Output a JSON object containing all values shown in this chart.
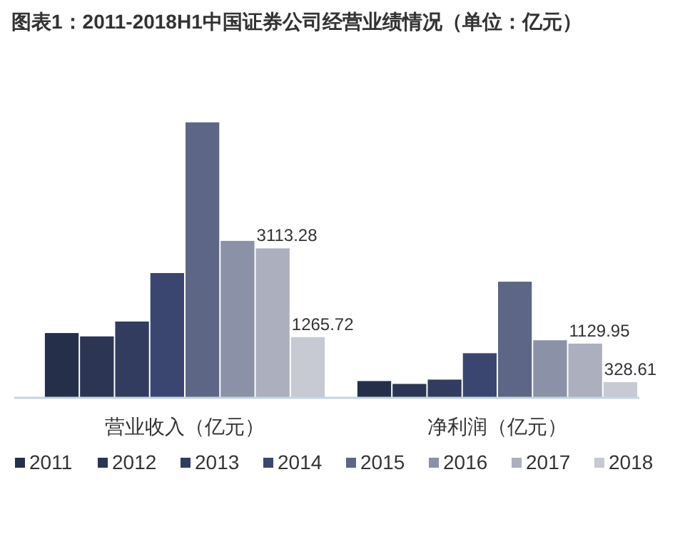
{
  "chart_data": {
    "type": "bar",
    "title": "图表1：2011-2018H1中国证券公司经营业绩情况（单位：亿元）",
    "categories": [
      "营业收入（亿元）",
      "净利润（亿元）"
    ],
    "legend": "bottom",
    "tick_labels": "x",
    "series": [
      {
        "name": "2011",
        "color": "#262f4a",
        "values": [
          1350,
          350
        ],
        "value_labels": [
          null,
          null
        ]
      },
      {
        "name": "2012",
        "color": "#2c3553",
        "values": [
          1280,
          290
        ],
        "value_labels": [
          null,
          null
        ]
      },
      {
        "name": "2013",
        "color": "#323c5f",
        "values": [
          1590,
          380
        ],
        "value_labels": [
          null,
          null
        ]
      },
      {
        "name": "2014",
        "color": "#3b4670",
        "values": [
          2600,
          930
        ],
        "value_labels": [
          null,
          null
        ]
      },
      {
        "name": "2015",
        "color": "#5d6685",
        "values": [
          5740,
          2420
        ],
        "value_labels": [
          null,
          null
        ]
      },
      {
        "name": "2016",
        "color": "#8b91a6",
        "values": [
          3270,
          1200
        ],
        "value_labels": [
          null,
          null
        ]
      },
      {
        "name": "2017",
        "color": "#abafbe",
        "values": [
          3113.28,
          1129.95
        ],
        "value_labels": [
          "3113.28",
          "1129.95"
        ]
      },
      {
        "name": "2018",
        "color": "#c8cad3",
        "values": [
          1265.72,
          328.61
        ],
        "value_labels": [
          "1265.72",
          "328.61"
        ]
      }
    ]
  }
}
